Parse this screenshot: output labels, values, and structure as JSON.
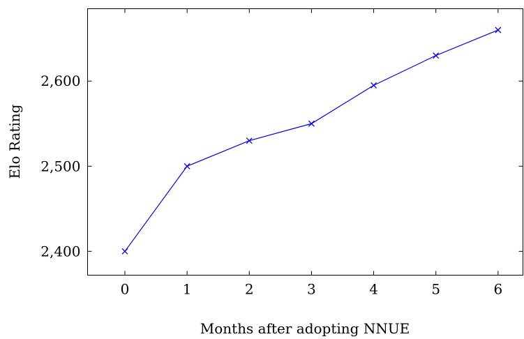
{
  "chart_data": {
    "type": "line",
    "title": "",
    "xlabel": "Months after adopting NNUE",
    "ylabel": "Elo Rating",
    "x": [
      0,
      1,
      2,
      3,
      4,
      5,
      6
    ],
    "series": [
      {
        "values": [
          2400,
          2500,
          2530,
          2550,
          2595,
          2630,
          2660
        ],
        "color": "#0000ff",
        "marker": "x"
      }
    ],
    "xlim": [
      -0.6,
      6.4
    ],
    "ylim": [
      2372,
      2685
    ],
    "xticks": [
      "0",
      "1",
      "2",
      "3",
      "4",
      "5",
      "6"
    ],
    "yticks": [
      2400,
      2500,
      2600
    ],
    "ytick_labels": [
      "2,400",
      "2,500",
      "2,600"
    ],
    "grid": false,
    "legend": "none"
  }
}
